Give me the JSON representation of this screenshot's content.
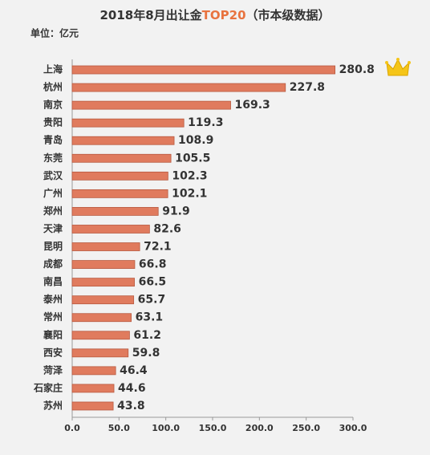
{
  "chart_data": {
    "type": "bar",
    "orientation": "horizontal",
    "title": [
      "2018年8月出让金",
      "TOP20",
      "（市本级数据）"
    ],
    "title_colors": [
      "#333333",
      "#e8733f",
      "#333333"
    ],
    "unit": "单位：亿元",
    "categories": [
      "上海",
      "杭州",
      "南京",
      "贵阳",
      "青岛",
      "东莞",
      "武汉",
      "广州",
      "郑州",
      "天津",
      "昆明",
      "成都",
      "南昌",
      "泰州",
      "常州",
      "襄阳",
      "西安",
      "菏泽",
      "石家庄",
      "苏州"
    ],
    "values": [
      280.8,
      227.8,
      169.3,
      119.3,
      108.9,
      105.5,
      102.3,
      102.1,
      91.9,
      82.6,
      72.1,
      66.8,
      66.5,
      65.7,
      63.1,
      61.2,
      59.8,
      46.4,
      44.6,
      43.8
    ],
    "color": "#e07b5e",
    "xlim": [
      0,
      300
    ],
    "xticks": [
      {
        "value": 0,
        "label": "0.0"
      },
      {
        "value": 50,
        "label": "50.0"
      },
      {
        "value": 100,
        "label": "100.0"
      },
      {
        "value": 150,
        "label": "150.0"
      },
      {
        "value": 200,
        "label": "200.0"
      },
      {
        "value": 250,
        "label": "250.0"
      },
      {
        "value": 300,
        "label": "300.0"
      }
    ]
  }
}
